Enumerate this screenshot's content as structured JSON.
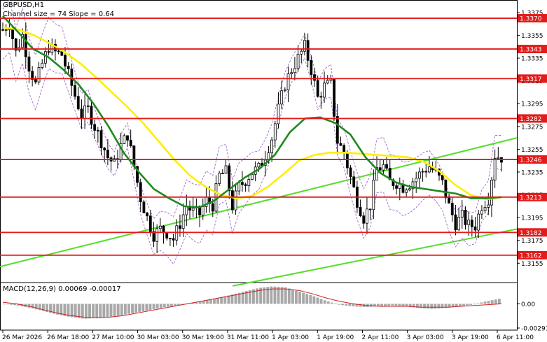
{
  "header": {
    "symbol": "GBPUSD,H1",
    "indicator": "Channel size = 74 Slope = 0.64",
    "macd_label": "MACD(12,26,9) 0.00069 -0.00017"
  },
  "colors": {
    "level_line": "#e31b1b",
    "sma_yellow": "#ffee00",
    "sma_green": "#1e8a1e",
    "channel": "#55dd2a",
    "bollinger": "#a266c8",
    "macd_hist": "#a8a8a8",
    "macd_signal": "#cc2222",
    "candle": "#000000",
    "axis_text": "#000000"
  },
  "chart_data": {
    "type": "candlestick",
    "symbol": "GBPUSD",
    "timeframe": "H1",
    "price_range": [
      1.3138,
      1.3386
    ],
    "price_ticks": [
      1.3155,
      1.3175,
      1.3195,
      1.3215,
      1.3235,
      1.3255,
      1.3275,
      1.3295,
      1.3315,
      1.3335,
      1.3355,
      1.3375
    ],
    "levels": [
      {
        "value": 1.337,
        "label": "1.3370"
      },
      {
        "value": 1.3343,
        "label": "1.3343"
      },
      {
        "value": 1.3317,
        "label": "1.3317"
      },
      {
        "value": 1.3282,
        "label": "1.3282"
      },
      {
        "value": 1.3246,
        "label": "1.3246"
      },
      {
        "value": 1.3213,
        "label": "1.3213"
      },
      {
        "value": 1.3182,
        "label": "1.3182"
      },
      {
        "value": 1.3162,
        "label": "1.3162"
      }
    ],
    "time_labels": [
      "26 Mar 2026",
      "26 Mar 18:00",
      "27 Mar 10:00",
      "30 Mar 03:00",
      "30 Mar 19:00",
      "31 Mar 11:00",
      "1 Apr 03:00",
      "1 Apr 19:00",
      "2 Apr 11:00",
      "3 Apr 03:00",
      "3 Apr 19:00",
      "6 Apr 11:00"
    ],
    "close_path": [
      1.336,
      1.3366,
      1.334,
      1.3355,
      1.3328,
      1.3312,
      1.333,
      1.3345,
      1.334,
      1.3338,
      1.332,
      1.3302,
      1.3285,
      1.329,
      1.3275,
      1.3262,
      1.3248,
      1.3242,
      1.3258,
      1.3268,
      1.324,
      1.3212,
      1.3195,
      1.318,
      1.3185,
      1.3182,
      1.3176,
      1.319,
      1.3205,
      1.32,
      1.3198,
      1.321,
      1.3206,
      1.3232,
      1.3235,
      1.3205,
      1.3222,
      1.3228,
      1.3235,
      1.3238,
      1.325,
      1.3265,
      1.329,
      1.3312,
      1.3325,
      1.3335,
      1.3345,
      1.3325,
      1.33,
      1.331,
      1.3312,
      1.3262,
      1.3252,
      1.323,
      1.321,
      1.3195,
      1.3206,
      1.3238,
      1.324,
      1.3226,
      1.3226,
      1.3222,
      1.3225,
      1.323,
      1.3236,
      1.324,
      1.3234,
      1.3225,
      1.3205,
      1.319,
      1.3196,
      1.3188,
      1.3188,
      1.3206,
      1.3212,
      1.325,
      1.3248
    ],
    "sma_yellow": [
      1.3362,
      1.336,
      1.3355,
      1.3348,
      1.334,
      1.333,
      1.3318,
      1.3305,
      1.3292,
      1.3278,
      1.3262,
      1.3246,
      1.3232,
      1.3222,
      1.3215,
      1.3212,
      1.3214,
      1.3222,
      1.3233,
      1.3245,
      1.325,
      1.3252,
      1.3252,
      1.3251,
      1.325,
      1.3249,
      1.3248,
      1.3244,
      1.3236,
      1.3224,
      1.3215,
      1.3211,
      1.3213
    ],
    "sma_green": [
      1.3372,
      1.3358,
      1.3343,
      1.3336,
      1.3325,
      1.3312,
      1.3295,
      1.3275,
      1.3252,
      1.3235,
      1.322,
      1.3212,
      1.3205,
      1.3204,
      1.321,
      1.322,
      1.323,
      1.3238,
      1.325,
      1.327,
      1.3282,
      1.3283,
      1.3278,
      1.3268,
      1.3248,
      1.3234,
      1.3226,
      1.3222,
      1.322,
      1.3218,
      1.3216,
      1.3212,
      1.3212,
      1.3213
    ],
    "channel_lines": [
      {
        "from": [
          0,
          1.3152
        ],
        "to": [
          1,
          1.3265
        ]
      },
      {
        "from": [
          0.45,
          1.3135
        ],
        "to": [
          1,
          1.3185
        ]
      }
    ],
    "macd": {
      "label": "MACD(12,26,9) 0.00069 -0.00017",
      "range": [
        -0.00291,
        0.00231
      ],
      "ticks": [
        0.0,
        -0.00291
      ],
      "tick_labels": [
        "0.00",
        "-0.00291"
      ],
      "histogram_profile": [
        0.0,
        -0.0002,
        -0.0005,
        -0.0009,
        -0.0013,
        -0.0016,
        -0.0018,
        -0.0017,
        -0.0016,
        -0.0013,
        -0.001,
        -0.0007,
        -0.0004,
        -0.0002,
        0.0001,
        0.0004,
        0.0007,
        0.0011,
        0.0015,
        0.0019,
        0.0021,
        0.002,
        0.0015,
        0.001,
        0.0004,
        -0.0001,
        -0.0003,
        -0.0004,
        -0.0003,
        -0.0002,
        -0.0003,
        -0.0005,
        -0.0006,
        -0.0005,
        -0.0003,
        -0.0001,
        0.0003,
        0.0006
      ],
      "signal_profile": [
        0.0002,
        0.0,
        -0.0003,
        -0.0007,
        -0.0011,
        -0.0014,
        -0.0016,
        -0.0017,
        -0.0016,
        -0.0014,
        -0.0011,
        -0.0008,
        -0.0005,
        -0.0002,
        0.0001,
        0.0004,
        0.0007,
        0.001,
        0.0013,
        0.0016,
        0.0018,
        0.0018,
        0.0016,
        0.0012,
        0.0007,
        0.0003,
        0.0,
        -0.0002,
        -0.0003,
        -0.0003,
        -0.0003,
        -0.0004,
        -0.0004,
        -0.0004,
        -0.0003,
        -0.0002,
        -0.0001,
        0.0
      ]
    }
  }
}
